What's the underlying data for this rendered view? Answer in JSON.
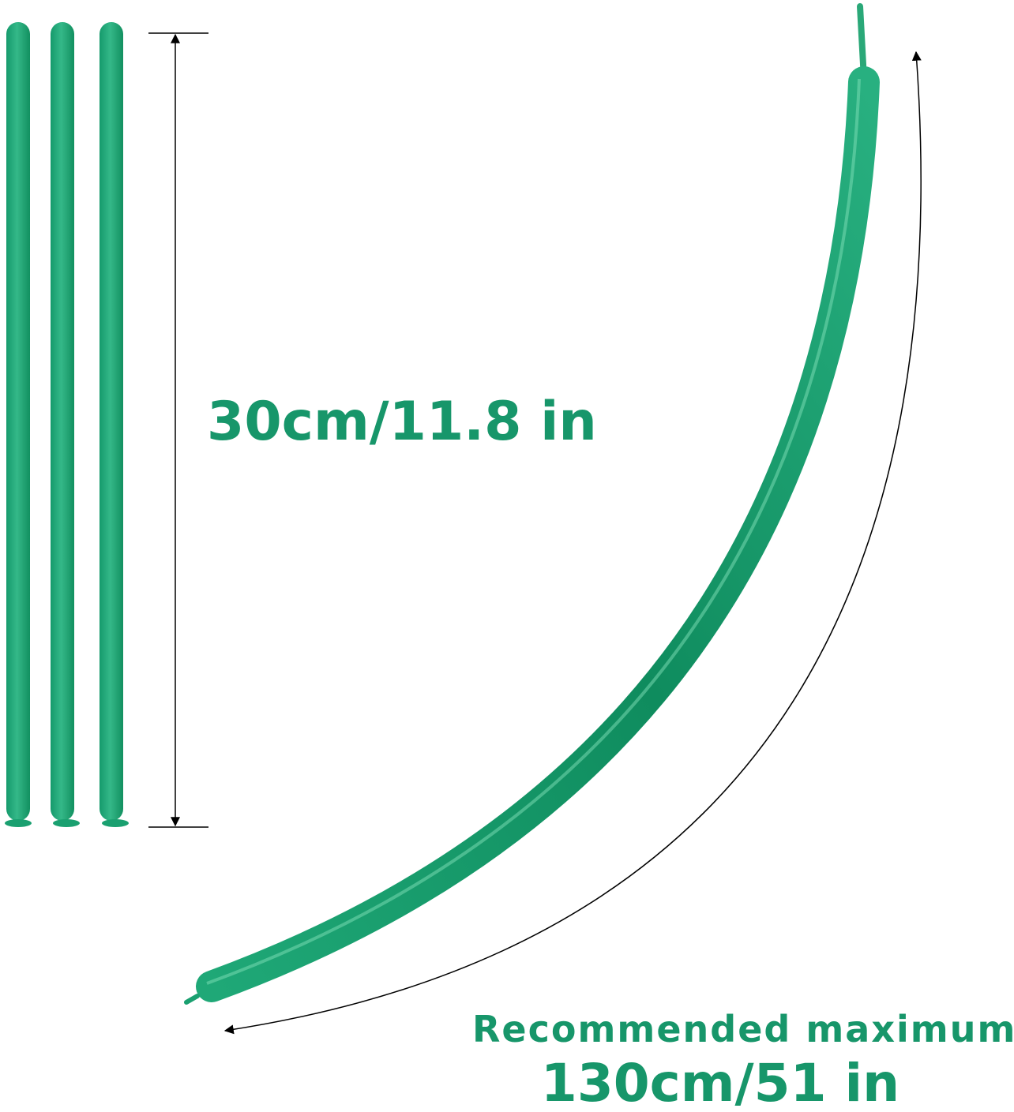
{
  "short_label": "30cm/11.8 in",
  "long_label": {
    "line1": "Recommended maximum",
    "line2": "130cm/51 in"
  }
}
